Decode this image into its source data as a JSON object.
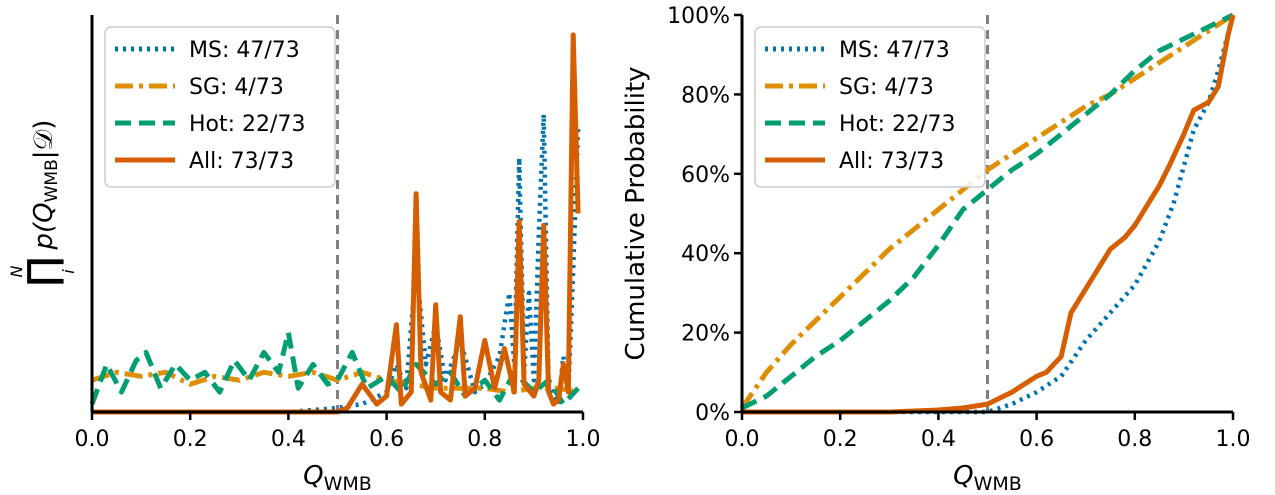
{
  "chart_data": [
    {
      "type": "line",
      "panel": "left",
      "xlabel_main": "Q",
      "xlabel_sub": "WMB",
      "ylabel_upper": "N",
      "ylabel_lower": "i",
      "ylabel_symbol": "∏",
      "ylabel_text": "p(Q",
      "ylabel_sub": "WMB",
      "ylabel_tail": "|𝒟)",
      "xlim": [
        0,
        1
      ],
      "ylim": [
        0,
        1
      ],
      "x_ticks": [
        "0.0",
        "0.2",
        "0.4",
        "0.6",
        "0.8",
        "1.0"
      ],
      "y_ticks": [],
      "vline": 0.5,
      "legend_position": "upper-left",
      "series": [
        {
          "name": "MS: 47/73",
          "style": "dotted",
          "color": "#0173b2",
          "x": [
            0,
            0.1,
            0.2,
            0.3,
            0.4,
            0.5,
            0.55,
            0.6,
            0.62,
            0.64,
            0.66,
            0.68,
            0.7,
            0.72,
            0.75,
            0.78,
            0.8,
            0.83,
            0.85,
            0.86,
            0.87,
            0.88,
            0.89,
            0.9,
            0.91,
            0.92,
            0.93,
            0.94,
            0.95,
            0.96,
            0.97,
            0.98,
            0.99
          ],
          "y": [
            0,
            0,
            0,
            0,
            0,
            0.01,
            0.02,
            0.05,
            0.12,
            0.06,
            0.37,
            0.12,
            0.22,
            0.08,
            0.18,
            0.05,
            0.07,
            0.14,
            0.3,
            0.12,
            0.64,
            0.1,
            0.3,
            0.08,
            0.45,
            0.75,
            0.07,
            0.05,
            0.02,
            0.14,
            0.05,
            0.36,
            0.72
          ]
        },
        {
          "name": "SG: 4/73",
          "style": "dashdot",
          "color": "#de8f05",
          "x": [
            0,
            0.05,
            0.1,
            0.15,
            0.2,
            0.25,
            0.3,
            0.35,
            0.4,
            0.45,
            0.5,
            0.55,
            0.6,
            0.65,
            0.7,
            0.75,
            0.8,
            0.85,
            0.9,
            0.95,
            0.99
          ],
          "y": [
            0.08,
            0.1,
            0.09,
            0.1,
            0.07,
            0.09,
            0.08,
            0.1,
            0.09,
            0.1,
            0.08,
            0.1,
            0.08,
            0.07,
            0.06,
            0.06,
            0.06,
            0.05,
            0.06,
            0.06,
            0.05
          ]
        },
        {
          "name": "Hot: 22/73",
          "style": "dashed",
          "color": "#029e73",
          "x": [
            0,
            0.03,
            0.06,
            0.09,
            0.11,
            0.14,
            0.17,
            0.2,
            0.23,
            0.26,
            0.29,
            0.32,
            0.35,
            0.38,
            0.4,
            0.42,
            0.45,
            0.48,
            0.5,
            0.53,
            0.56,
            0.6,
            0.63,
            0.66,
            0.7,
            0.73,
            0.76,
            0.8,
            0.83,
            0.86,
            0.9,
            0.93,
            0.96,
            0.99
          ],
          "y": [
            0.02,
            0.12,
            0.05,
            0.13,
            0.15,
            0.06,
            0.12,
            0.08,
            0.1,
            0.05,
            0.13,
            0.08,
            0.15,
            0.1,
            0.2,
            0.06,
            0.12,
            0.07,
            0.08,
            0.15,
            0.06,
            0.09,
            0.05,
            0.12,
            0.07,
            0.1,
            0.04,
            0.08,
            0.03,
            0.1,
            0.05,
            0.08,
            0.02,
            0.06
          ]
        },
        {
          "name": "All: 73/73",
          "style": "solid",
          "color": "#d55e00",
          "x": [
            0,
            0.2,
            0.4,
            0.5,
            0.52,
            0.55,
            0.58,
            0.6,
            0.62,
            0.63,
            0.65,
            0.66,
            0.67,
            0.69,
            0.7,
            0.71,
            0.73,
            0.75,
            0.76,
            0.78,
            0.8,
            0.82,
            0.84,
            0.86,
            0.87,
            0.88,
            0.9,
            0.91,
            0.92,
            0.93,
            0.94,
            0.95,
            0.96,
            0.97,
            0.98,
            0.99
          ],
          "y": [
            0,
            0,
            0,
            0,
            0.01,
            0.07,
            0.02,
            0.04,
            0.22,
            0.02,
            0.05,
            0.55,
            0.1,
            0.03,
            0.27,
            0.05,
            0.03,
            0.24,
            0.04,
            0.06,
            0.18,
            0.06,
            0.16,
            0.05,
            0.48,
            0.07,
            0.04,
            0.08,
            0.47,
            0.05,
            0.02,
            0.03,
            0.12,
            0.05,
            0.95,
            0.5
          ]
        }
      ]
    },
    {
      "type": "line",
      "panel": "right",
      "xlabel_main": "Q",
      "xlabel_sub": "WMB",
      "ylabel": "Cumulative Probability",
      "xlim": [
        0,
        1
      ],
      "ylim": [
        0,
        1
      ],
      "x_ticks": [
        "0.0",
        "0.2",
        "0.4",
        "0.6",
        "0.8",
        "1.0"
      ],
      "y_ticks": [
        "0%",
        "20%",
        "40%",
        "60%",
        "80%",
        "100%"
      ],
      "vline": 0.5,
      "legend_position": "upper-left",
      "series": [
        {
          "name": "MS: 47/73",
          "style": "dotted",
          "color": "#0173b2",
          "x": [
            0,
            0.4,
            0.5,
            0.55,
            0.6,
            0.65,
            0.7,
            0.75,
            0.8,
            0.85,
            0.88,
            0.9,
            0.92,
            0.95,
            0.97,
            1.0
          ],
          "y": [
            0,
            0,
            0,
            0.02,
            0.05,
            0.09,
            0.18,
            0.25,
            0.32,
            0.43,
            0.53,
            0.62,
            0.71,
            0.78,
            0.86,
            1.0
          ]
        },
        {
          "name": "SG: 4/73",
          "style": "dashdot",
          "color": "#de8f05",
          "x": [
            0,
            0.05,
            0.1,
            0.15,
            0.2,
            0.25,
            0.3,
            0.35,
            0.4,
            0.45,
            0.5,
            0.55,
            0.6,
            0.65,
            0.7,
            0.75,
            0.8,
            0.85,
            0.9,
            0.95,
            1.0
          ],
          "y": [
            0.01,
            0.1,
            0.17,
            0.23,
            0.29,
            0.35,
            0.41,
            0.46,
            0.51,
            0.56,
            0.61,
            0.65,
            0.69,
            0.73,
            0.77,
            0.8,
            0.84,
            0.88,
            0.92,
            0.96,
            1.0
          ]
        },
        {
          "name": "Hot: 22/73",
          "style": "dashed",
          "color": "#029e73",
          "x": [
            0,
            0.05,
            0.1,
            0.15,
            0.2,
            0.25,
            0.3,
            0.35,
            0.4,
            0.45,
            0.5,
            0.55,
            0.6,
            0.65,
            0.7,
            0.75,
            0.8,
            0.85,
            0.9,
            0.95,
            1.0
          ],
          "y": [
            0.01,
            0.04,
            0.09,
            0.14,
            0.18,
            0.23,
            0.28,
            0.34,
            0.42,
            0.51,
            0.56,
            0.61,
            0.65,
            0.7,
            0.75,
            0.8,
            0.86,
            0.91,
            0.94,
            0.97,
            1.0
          ]
        },
        {
          "name": "All: 73/73",
          "style": "solid",
          "color": "#d55e00",
          "x": [
            0,
            0.3,
            0.4,
            0.45,
            0.5,
            0.55,
            0.6,
            0.62,
            0.65,
            0.67,
            0.7,
            0.72,
            0.75,
            0.78,
            0.8,
            0.82,
            0.85,
            0.87,
            0.9,
            0.92,
            0.95,
            0.97,
            0.99,
            1.0
          ],
          "y": [
            0,
            0,
            0.005,
            0.01,
            0.02,
            0.05,
            0.09,
            0.1,
            0.14,
            0.25,
            0.31,
            0.35,
            0.41,
            0.44,
            0.47,
            0.51,
            0.57,
            0.62,
            0.7,
            0.76,
            0.78,
            0.82,
            0.95,
            1.0
          ]
        }
      ]
    }
  ]
}
